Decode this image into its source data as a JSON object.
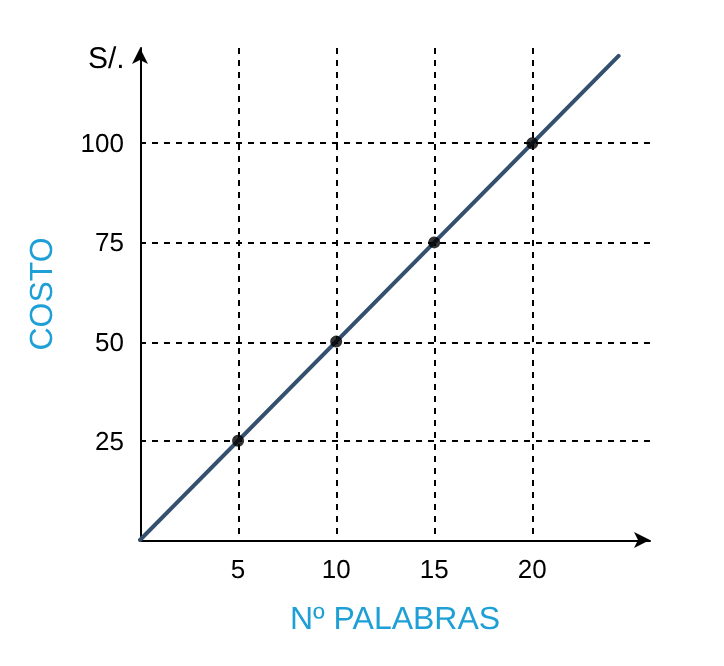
{
  "chart_data": {
    "type": "line",
    "xlabel": "Nº PALABRAS",
    "ylabel": "COSTO",
    "annotations": [
      "S/."
    ],
    "series": [
      {
        "type": "line",
        "x": [
          0,
          24.4
        ],
        "values": [
          0,
          122
        ],
        "color": "#34506e",
        "marker": "none"
      },
      {
        "type": "scatter",
        "x": [
          5,
          10,
          15,
          20
        ],
        "values": [
          25,
          50,
          75,
          100
        ],
        "color": "#000000",
        "marker": "circle"
      }
    ],
    "xlim": [
      0,
      26
    ],
    "ylim": [
      0,
      124
    ],
    "xticks": [
      5,
      10,
      15,
      20
    ],
    "yticks": [
      25,
      50,
      75,
      100
    ],
    "grid": true
  }
}
